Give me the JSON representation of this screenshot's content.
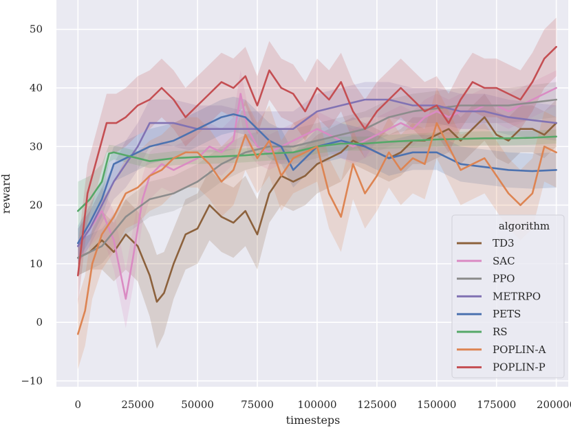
{
  "chart_data": {
    "type": "line",
    "title": "",
    "xlabel": "timesteps",
    "ylabel": "reward",
    "xlim": [
      -9000,
      205000
    ],
    "ylim": [
      -11,
      55
    ],
    "xticks": [
      0,
      25000,
      50000,
      75000,
      100000,
      125000,
      150000,
      175000,
      200000
    ],
    "yticks": [
      -10,
      0,
      10,
      20,
      30,
      40,
      50
    ],
    "tick_labels_x": [
      "0",
      "25000",
      "50000",
      "75000",
      "100000",
      "125000",
      "150000",
      "175000",
      "200000"
    ],
    "tick_labels_y": [
      "−10",
      "0",
      "10",
      "20",
      "30",
      "40",
      "50"
    ],
    "grid": true,
    "legend": {
      "title": "algorithm",
      "position": "bottom-right"
    },
    "colors": {
      "background": "#EAEAF2",
      "grid": "#FFFFFF"
    },
    "series": [
      {
        "name": "TD3",
        "color": "#8C613C",
        "x": [
          0,
          5000,
          10000,
          15000,
          20000,
          25000,
          30000,
          33000,
          36000,
          40000,
          45000,
          50000,
          55000,
          60000,
          65000,
          70000,
          75000,
          80000,
          85000,
          90000,
          95000,
          100000,
          105000,
          110000,
          115000,
          120000,
          125000,
          130000,
          135000,
          140000,
          145000,
          150000,
          155000,
          160000,
          165000,
          170000,
          175000,
          180000,
          185000,
          190000,
          195000,
          200000
        ],
        "values": [
          11,
          12,
          14,
          12,
          15,
          13,
          8,
          3.5,
          5,
          10,
          15,
          16,
          20,
          18,
          17,
          19,
          15,
          22,
          25,
          24,
          25,
          27,
          28,
          29,
          31,
          30,
          29,
          28,
          29,
          31,
          31,
          32,
          33,
          31,
          33,
          35,
          32,
          31,
          33,
          33,
          32,
          34
        ],
        "band": [
          3,
          3,
          5,
          5,
          6,
          6,
          7,
          8,
          7,
          6,
          6,
          6,
          6,
          6,
          6,
          6,
          6,
          5,
          5,
          5,
          5,
          5,
          5,
          5,
          4,
          4,
          4,
          4,
          4,
          4,
          4,
          4,
          4,
          4,
          4,
          4,
          4,
          4,
          4,
          4,
          4,
          4
        ]
      },
      {
        "name": "SAC",
        "color": "#DA8BC3",
        "x": [
          0,
          5000,
          10000,
          15000,
          18000,
          20000,
          23000,
          27000,
          30000,
          35000,
          40000,
          45000,
          50000,
          55000,
          60000,
          65000,
          68000,
          71000,
          75000,
          80000,
          85000,
          90000,
          95000,
          100000,
          105000,
          110000,
          115000,
          120000,
          125000,
          130000,
          135000,
          140000,
          145000,
          150000,
          155000,
          160000,
          165000,
          170000,
          175000,
          180000,
          185000,
          190000,
          195000,
          200000
        ],
        "values": [
          13,
          16,
          19,
          14,
          8,
          4,
          11,
          21,
          25,
          27,
          26,
          27,
          28,
          30,
          29,
          31,
          39,
          33,
          30,
          29,
          30,
          31,
          32,
          33,
          32,
          31,
          30,
          31,
          32,
          33,
          34,
          33,
          35,
          36,
          35,
          36,
          36,
          37,
          37,
          36,
          37,
          38,
          39,
          40
        ],
        "band": [
          3,
          3,
          4,
          5,
          5,
          5,
          5,
          4,
          4,
          4,
          4,
          4,
          4,
          4,
          4,
          4,
          4,
          4,
          3,
          3,
          3,
          3,
          3,
          3,
          3,
          3,
          3,
          3,
          3,
          3,
          3,
          3,
          3,
          3,
          3,
          3,
          3,
          3,
          3,
          3,
          3,
          3,
          3,
          3
        ]
      },
      {
        "name": "PPO",
        "color": "#8C8C8C",
        "x": [
          0,
          10000,
          20000,
          30000,
          40000,
          50000,
          60000,
          70000,
          80000,
          90000,
          100000,
          110000,
          120000,
          130000,
          140000,
          150000,
          160000,
          170000,
          180000,
          190000,
          200000
        ],
        "values": [
          11,
          13,
          18,
          21,
          22,
          24,
          27,
          29,
          30,
          30,
          31,
          32,
          33,
          35,
          36,
          36.5,
          37,
          37,
          37,
          37.5,
          38
        ],
        "band": [
          3,
          3,
          3,
          3,
          3,
          3,
          3,
          3,
          3,
          3,
          3,
          3,
          3,
          3,
          3,
          3,
          3,
          3,
          3,
          3,
          3
        ]
      },
      {
        "name": "METRPO",
        "color": "#8172B3",
        "x": [
          0,
          5000,
          10000,
          15000,
          20000,
          25000,
          30000,
          40000,
          50000,
          60000,
          70000,
          80000,
          90000,
          100000,
          110000,
          120000,
          130000,
          140000,
          150000,
          160000,
          170000,
          180000,
          190000,
          200000
        ],
        "values": [
          13,
          16,
          20,
          24,
          27,
          30,
          34,
          34,
          33,
          33,
          33,
          33,
          33,
          36,
          37,
          38,
          38,
          37,
          37,
          36,
          36,
          35,
          34.5,
          34
        ],
        "band": [
          3,
          3,
          3,
          3,
          4,
          4,
          4,
          4,
          4,
          4,
          3,
          3,
          3,
          3,
          3,
          3,
          3,
          3,
          3,
          3,
          3,
          3,
          3,
          3
        ]
      },
      {
        "name": "PETS",
        "color": "#4C72B0",
        "x": [
          0,
          5000,
          10000,
          15000,
          20000,
          25000,
          30000,
          40000,
          50000,
          60000,
          65000,
          70000,
          80000,
          85000,
          90000,
          95000,
          100000,
          110000,
          120000,
          130000,
          140000,
          150000,
          160000,
          170000,
          180000,
          190000,
          200000
        ],
        "values": [
          13.5,
          17,
          21,
          27,
          28,
          29,
          30,
          31,
          33,
          35,
          35.5,
          35,
          31,
          30,
          26,
          28,
          30,
          31,
          30,
          28,
          29,
          29,
          27,
          26.5,
          26,
          25.8,
          26
        ],
        "band": [
          3,
          3,
          3,
          3,
          3,
          3,
          3,
          3,
          3,
          3,
          3,
          3,
          3,
          3,
          3,
          3,
          3,
          3,
          3,
          3,
          3,
          3,
          3,
          3,
          3,
          3,
          3
        ]
      },
      {
        "name": "RS",
        "color": "#55A868",
        "x": [
          0,
          5000,
          10000,
          13000,
          15000,
          20000,
          25000,
          30000,
          40000,
          50000,
          60000,
          70000,
          80000,
          90000,
          100000,
          110000,
          120000,
          130000,
          140000,
          150000,
          160000,
          170000,
          180000,
          190000,
          200000
        ],
        "values": [
          19,
          21,
          24,
          28.8,
          29,
          28.5,
          28,
          27.5,
          28,
          28.2,
          28.3,
          28.5,
          28.8,
          29,
          30,
          30.5,
          30.5,
          30.8,
          31,
          31.2,
          31.3,
          31.4,
          31.4,
          31.5,
          31.7
        ],
        "band": [
          5,
          4,
          3,
          1.5,
          1.2,
          1.2,
          1.2,
          1.2,
          1.2,
          1.2,
          1.2,
          1.2,
          1.2,
          1.2,
          1.2,
          1.2,
          1.2,
          1.2,
          1.2,
          1.2,
          1.2,
          1.2,
          1.2,
          1.2,
          1.2
        ]
      },
      {
        "name": "POPLIN-A",
        "color": "#DD8452",
        "x": [
          0,
          3000,
          6000,
          10000,
          15000,
          20000,
          25000,
          30000,
          35000,
          40000,
          45000,
          50000,
          55000,
          60000,
          65000,
          70000,
          75000,
          80000,
          85000,
          90000,
          95000,
          100000,
          105000,
          110000,
          115000,
          120000,
          125000,
          130000,
          135000,
          140000,
          145000,
          150000,
          155000,
          160000,
          165000,
          170000,
          175000,
          180000,
          185000,
          190000,
          195000,
          200000
        ],
        "values": [
          -2,
          2,
          10,
          15,
          18,
          22,
          23,
          25,
          26,
          28,
          29,
          29,
          27,
          24,
          26,
          32,
          28,
          31,
          25,
          28,
          29,
          30,
          22,
          18,
          27,
          22,
          25,
          29,
          26,
          28,
          27,
          34,
          30,
          26,
          27,
          28,
          25,
          22,
          20,
          22,
          30,
          29
        ],
        "band": [
          6,
          6,
          6,
          6,
          6,
          6,
          6,
          6,
          6,
          6,
          6,
          6,
          6,
          6,
          6,
          6,
          6,
          6,
          6,
          6,
          6,
          6,
          6,
          6,
          6,
          6,
          6,
          6,
          6,
          6,
          6,
          6,
          6,
          6,
          6,
          6,
          6,
          6,
          6,
          6,
          6,
          6
        ]
      },
      {
        "name": "POPLIN-P",
        "color": "#C44E52",
        "x": [
          0,
          4000,
          8000,
          12000,
          16000,
          20000,
          25000,
          30000,
          35000,
          40000,
          45000,
          50000,
          55000,
          60000,
          65000,
          70000,
          75000,
          80000,
          85000,
          90000,
          95000,
          100000,
          105000,
          110000,
          115000,
          120000,
          125000,
          130000,
          135000,
          140000,
          145000,
          150000,
          155000,
          160000,
          165000,
          170000,
          175000,
          180000,
          185000,
          190000,
          195000,
          200000
        ],
        "values": [
          8,
          22,
          28,
          34,
          34,
          35,
          37,
          38,
          40,
          38,
          35,
          37,
          39,
          41,
          40,
          42,
          37,
          43,
          40,
          39,
          36,
          40,
          38,
          41,
          36,
          33,
          36,
          38,
          40,
          38,
          36,
          37,
          34,
          38,
          41,
          40,
          40,
          39,
          38,
          41,
          45,
          47
        ],
        "band": [
          5,
          5,
          5,
          5,
          5,
          5,
          5,
          5,
          5,
          5,
          5,
          5,
          5,
          5,
          5,
          5,
          5,
          5,
          5,
          5,
          5,
          5,
          5,
          5,
          5,
          5,
          5,
          5,
          5,
          5,
          5,
          5,
          5,
          5,
          5,
          5,
          5,
          5,
          5,
          5,
          5,
          5
        ]
      }
    ]
  }
}
